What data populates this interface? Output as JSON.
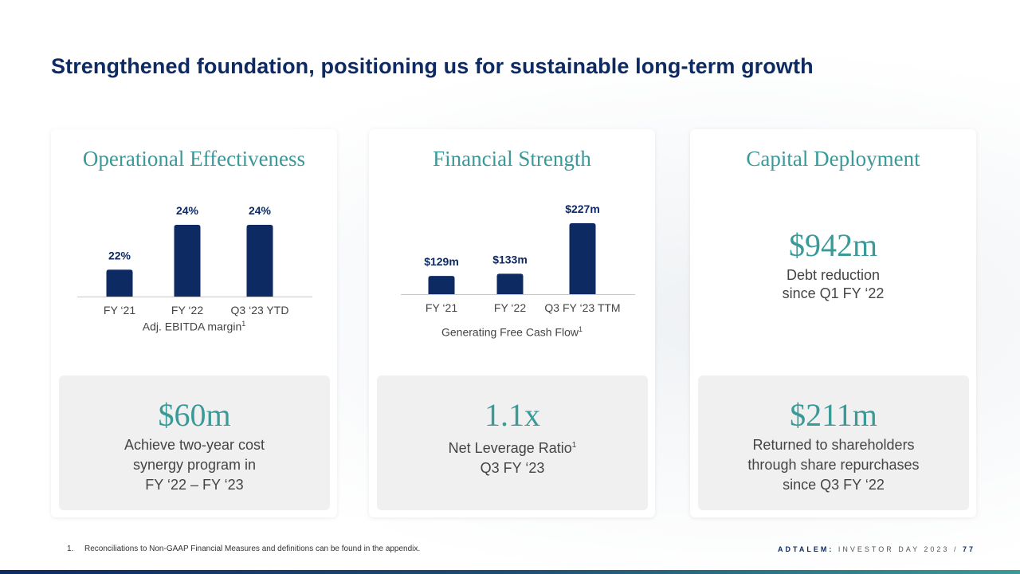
{
  "title": "Strengthened foundation, positioning us for sustainable long-term growth",
  "cards": [
    {
      "heading": "Operational Effectiveness",
      "metric_name": "Adj. EBITDA margin",
      "metric_sup": "1",
      "stat_value": "$60m",
      "stat_lines": [
        "Achieve two-year cost",
        "synergy program in",
        "FY ‘22 – FY ‘23"
      ]
    },
    {
      "heading": "Financial Strength",
      "metric_name": "Generating Free Cash Flow",
      "metric_sup": "1",
      "stat_value": "1.1x",
      "stat_line1": "Net Leverage Ratio",
      "stat_line1_sup": "1",
      "stat_line2": "Q3 FY ‘23"
    },
    {
      "heading": "Capital Deployment",
      "top_value": "$942m",
      "top_lines": [
        "Debt reduction",
        "since Q1 FY ‘22"
      ],
      "stat_value": "$211m",
      "stat_lines": [
        "Returned to shareholders",
        "through share repurchases",
        "since Q3 FY ‘22"
      ]
    }
  ],
  "chart_data": [
    {
      "type": "bar",
      "categories": [
        "FY ‘21",
        "FY ‘22",
        "Q3 ‘23 YTD"
      ],
      "values": [
        22,
        24,
        24
      ],
      "data_labels": [
        "22%",
        "24%",
        "24%"
      ],
      "unit": "%",
      "title": "",
      "xlabel": "Adj. EBITDA margin",
      "ylabel": "",
      "color": "#0e2a63"
    },
    {
      "type": "bar",
      "categories": [
        "FY ‘21",
        "FY ‘22",
        "Q3 FY ‘23 TTM"
      ],
      "values": [
        129,
        133,
        227
      ],
      "data_labels": [
        "$129m",
        "$133m",
        "$227m"
      ],
      "unit": "$m",
      "title": "",
      "xlabel": "Generating Free Cash Flow",
      "ylabel": "",
      "color": "#0e2a63"
    }
  ],
  "footnote": {
    "number": "1.",
    "text": "Reconciliations to Non-GAAP Financial Measures and definitions can be found in the appendix."
  },
  "brand": {
    "company": "ADTALEM:",
    "event": "INVESTOR DAY 2023",
    "separator": "/",
    "page": "77"
  },
  "colors": {
    "navy": "#0e2a63",
    "teal": "#3a9a98"
  }
}
